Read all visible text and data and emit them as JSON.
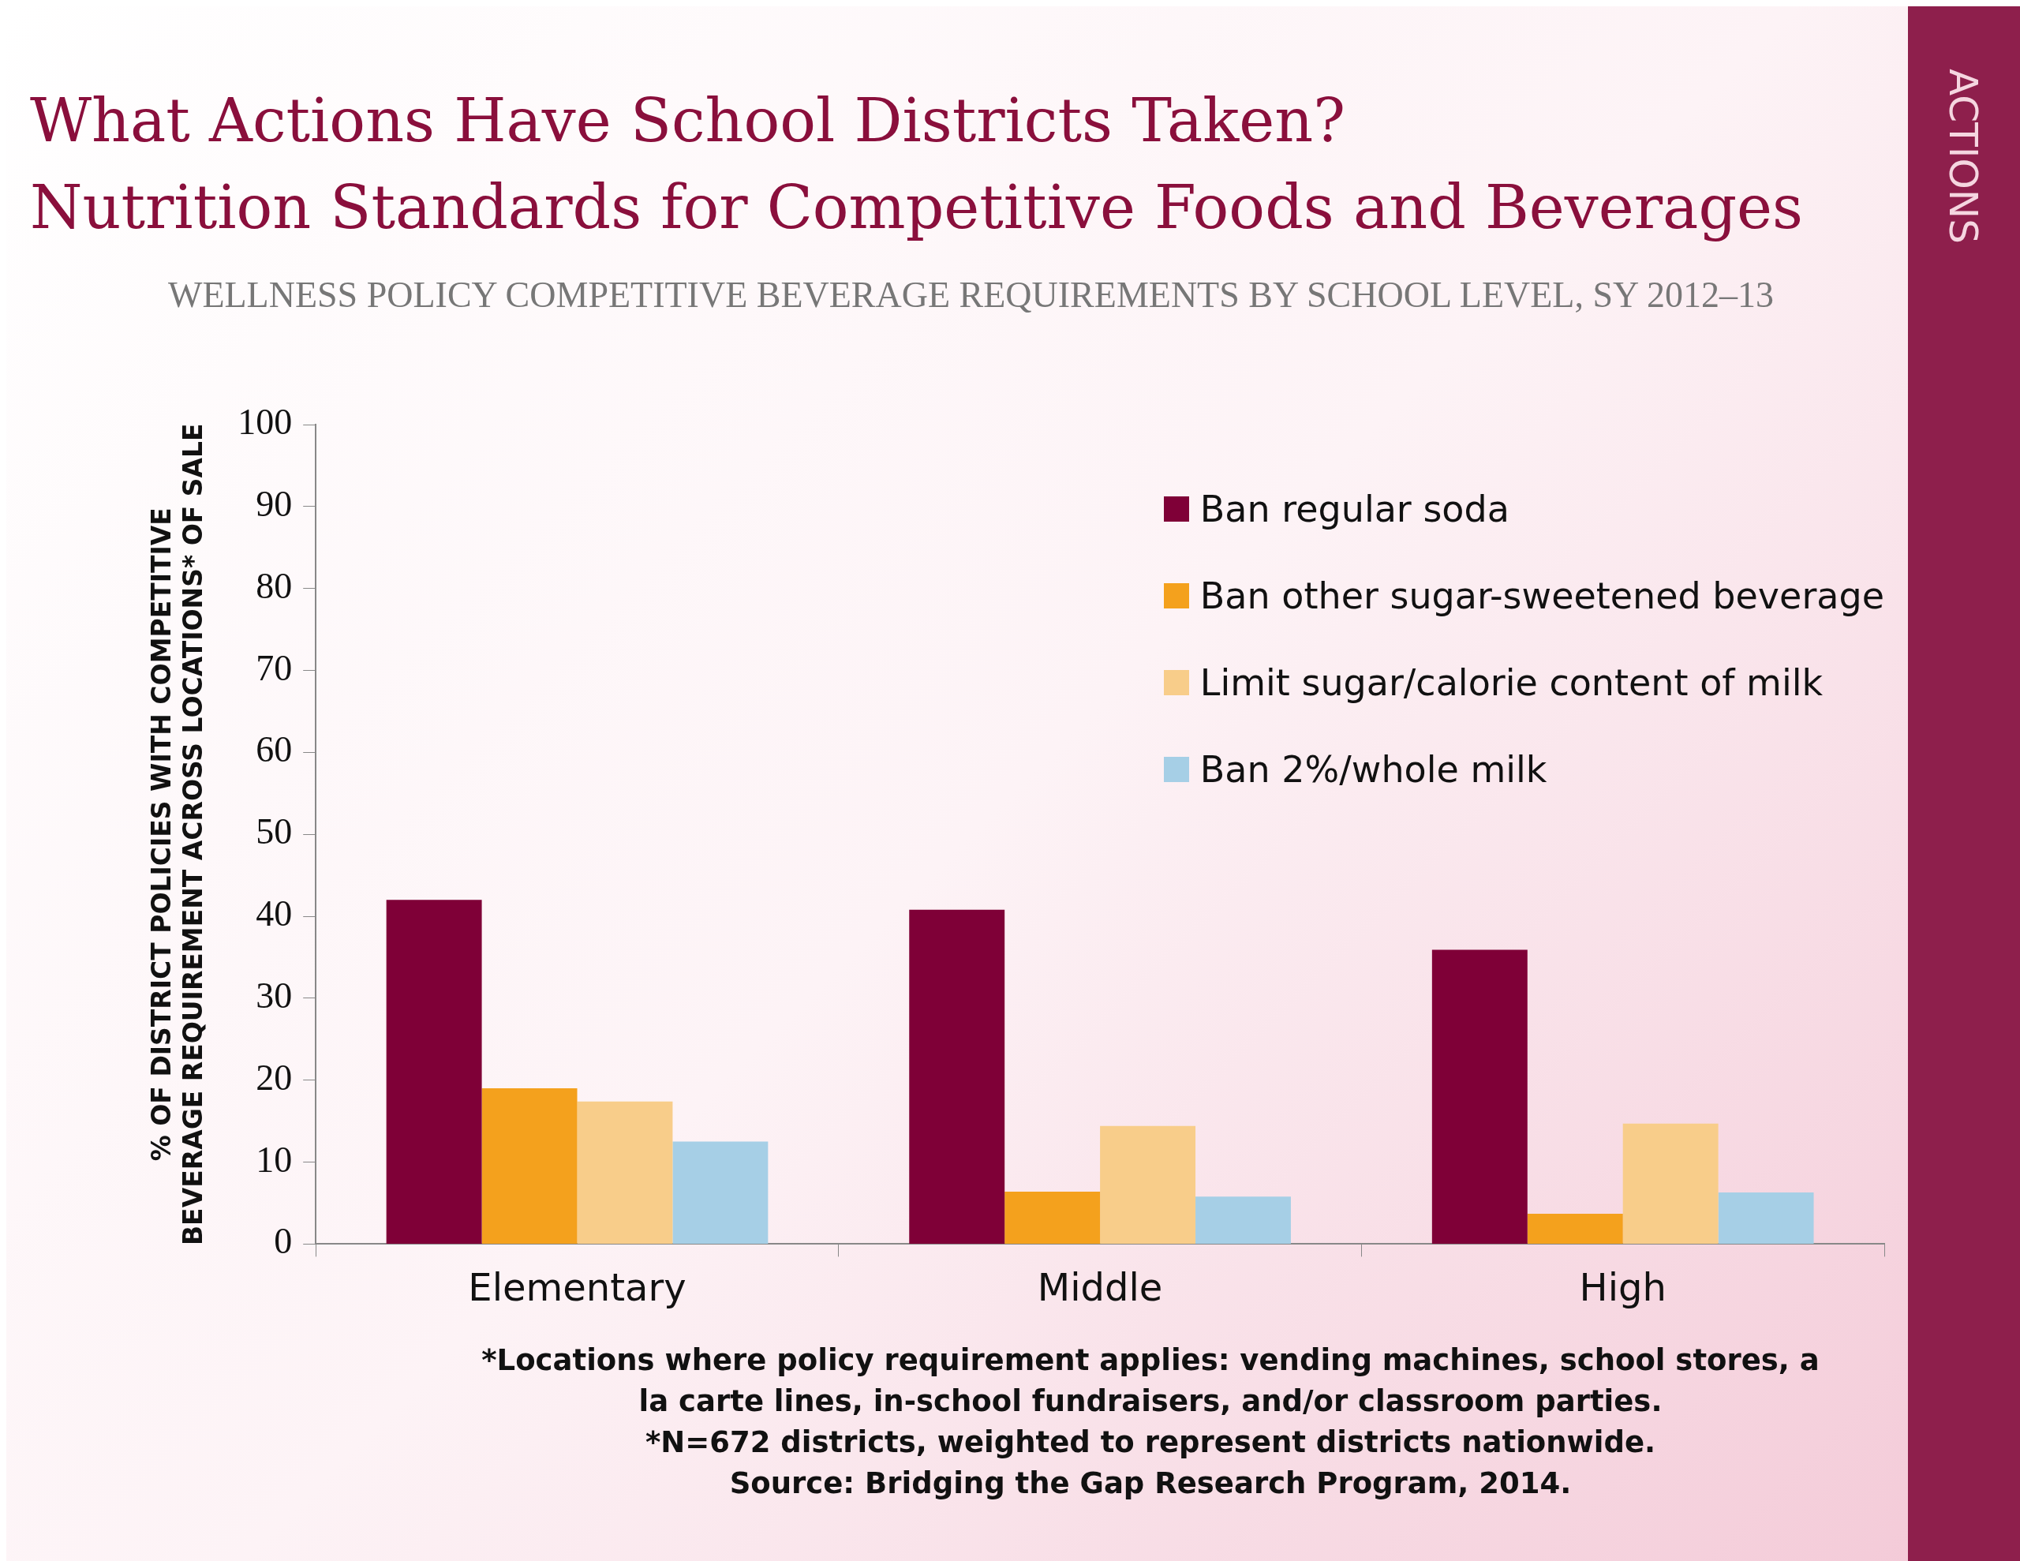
{
  "chart_data": {
    "type": "bar",
    "title": "What Actions Have School Districts Taken?\nNutrition Standards for Competitive Foods and Beverages",
    "subtitle": "WELLNESS POLICY COMPETITIVE BEVERAGE REQUIREMENTS BY SCHOOL LEVEL, SY 2012–13",
    "ylabel": "% OF DISTRICT POLICIES WITH COMPETITIVE BEVERAGE REQUIREMENT ACROSS LOCATIONS* OF SALE",
    "categories": [
      "Elementary",
      "Middle",
      "High"
    ],
    "series": [
      {
        "name": "Ban regular soda",
        "color": "#7f0037",
        "values": [
          42,
          40.8,
          35.9
        ]
      },
      {
        "name": "Ban other sugar-sweetened beverage",
        "color": "#f4a11d",
        "values": [
          19,
          6.4,
          3.7
        ]
      },
      {
        "name": "Limit sugar/calorie content of milk",
        "color": "#f8cd8a",
        "values": [
          17.4,
          14.4,
          14.7
        ]
      },
      {
        "name": "Ban 2%/whole milk",
        "color": "#a6cfe6",
        "values": [
          12.5,
          5.8,
          6.3
        ]
      }
    ],
    "ylim": [
      0,
      100
    ],
    "yticks": [
      0,
      10,
      20,
      30,
      40,
      50,
      60,
      70,
      80,
      90,
      100
    ],
    "grid": false,
    "legend": "top right",
    "annotations": [
      "*Locations where policy requirement applies: vending machines, school stores, a la carte lines, in-school fundraisers, and/or classroom parties.",
      "*N=672 districts, weighted to represent districts nationwide.",
      "Source: Bridging the Gap Research Program, 2014.",
      "ACTIONS"
    ]
  }
}
